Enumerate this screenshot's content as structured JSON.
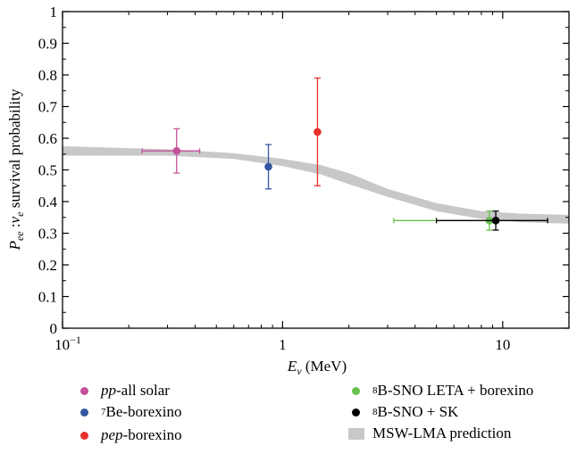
{
  "chart_data": {
    "type": "scatter",
    "xscale": "log",
    "xlim": [
      0.1,
      20
    ],
    "ylim": [
      0,
      1
    ],
    "xlabel": "E_ν (MeV)",
    "ylabel": "P_ee : ν_e survival probability",
    "xticks": [
      0.1,
      1,
      10
    ],
    "xtick_labels": [
      "10^−1",
      "1",
      "10"
    ],
    "yticks": [
      0,
      0.1,
      0.2,
      0.3,
      0.4,
      0.5,
      0.6,
      0.7,
      0.8,
      0.9,
      1
    ],
    "ytick_labels": [
      "0",
      "0.1",
      "0.2",
      "0.3",
      "0.4",
      "0.5",
      "0.6",
      "0.7",
      "0.8",
      "0.9",
      "1"
    ],
    "grid": false,
    "legend_position": "below",
    "series": [
      {
        "name": "pp-all solar",
        "color": "#c5519b",
        "points": [
          {
            "x": 0.33,
            "y": 0.56,
            "xerr": [
              0.23,
              0.42
            ],
            "yerr": [
              0.49,
              0.63
            ]
          }
        ]
      },
      {
        "name": "7Be-borexino",
        "color": "#3355a0",
        "points": [
          {
            "x": 0.862,
            "y": 0.51,
            "xerr": null,
            "yerr": [
              0.44,
              0.58
            ]
          }
        ]
      },
      {
        "name": "pep-borexino",
        "color": "#e8302c",
        "points": [
          {
            "x": 1.44,
            "y": 0.62,
            "xerr": null,
            "yerr": [
              0.45,
              0.79
            ]
          }
        ]
      },
      {
        "name": "8B-SNO LETA + borexino",
        "color": "#66c04c",
        "points": [
          {
            "x": 8.7,
            "y": 0.34,
            "xerr": [
              3.2,
              16
            ],
            "yerr": [
              0.31,
              0.37
            ]
          }
        ]
      },
      {
        "name": "8B-SNO + SK",
        "color": "#000000",
        "points": [
          {
            "x": 9.3,
            "y": 0.34,
            "xerr": [
              5,
              16
            ],
            "yerr": [
              0.31,
              0.37
            ]
          }
        ]
      }
    ],
    "band": {
      "name": "MSW-LMA prediction",
      "color": "#c8c8c8",
      "upper": [
        [
          0.1,
          0.575
        ],
        [
          0.3,
          0.565
        ],
        [
          0.6,
          0.553
        ],
        [
          1,
          0.535
        ],
        [
          1.5,
          0.515
        ],
        [
          2,
          0.49
        ],
        [
          3,
          0.44
        ],
        [
          5,
          0.395
        ],
        [
          8,
          0.37
        ],
        [
          12,
          0.362
        ],
        [
          20,
          0.358
        ]
      ],
      "lower": [
        [
          0.1,
          0.545
        ],
        [
          0.3,
          0.545
        ],
        [
          0.6,
          0.535
        ],
        [
          1,
          0.512
        ],
        [
          1.5,
          0.485
        ],
        [
          2,
          0.455
        ],
        [
          3,
          0.415
        ],
        [
          5,
          0.37
        ],
        [
          8,
          0.345
        ],
        [
          12,
          0.335
        ],
        [
          20,
          0.33
        ]
      ]
    }
  },
  "legend": {
    "pp": {
      "italic": "pp",
      "rest": "-all solar"
    },
    "be": {
      "sup": "7",
      "rest": "Be-borexino"
    },
    "pep": {
      "italic": "pep",
      "rest": "-borexino"
    },
    "snoleta": {
      "sup": "8",
      "rest": "B-SNO LETA + borexino"
    },
    "snosk": {
      "sup": "8",
      "rest": "B-SNO + SK"
    },
    "msw": {
      "text": "MSW-LMA prediction"
    }
  }
}
